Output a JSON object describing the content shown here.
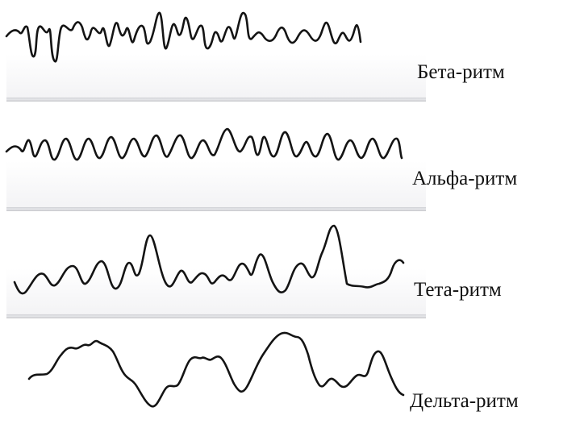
{
  "rhythms": [
    {
      "label": "Бета-ритм"
    },
    {
      "label": "Альфа-ритм"
    },
    {
      "label": "Тета-ритм"
    },
    {
      "label": "Дельта-ритм"
    }
  ]
}
